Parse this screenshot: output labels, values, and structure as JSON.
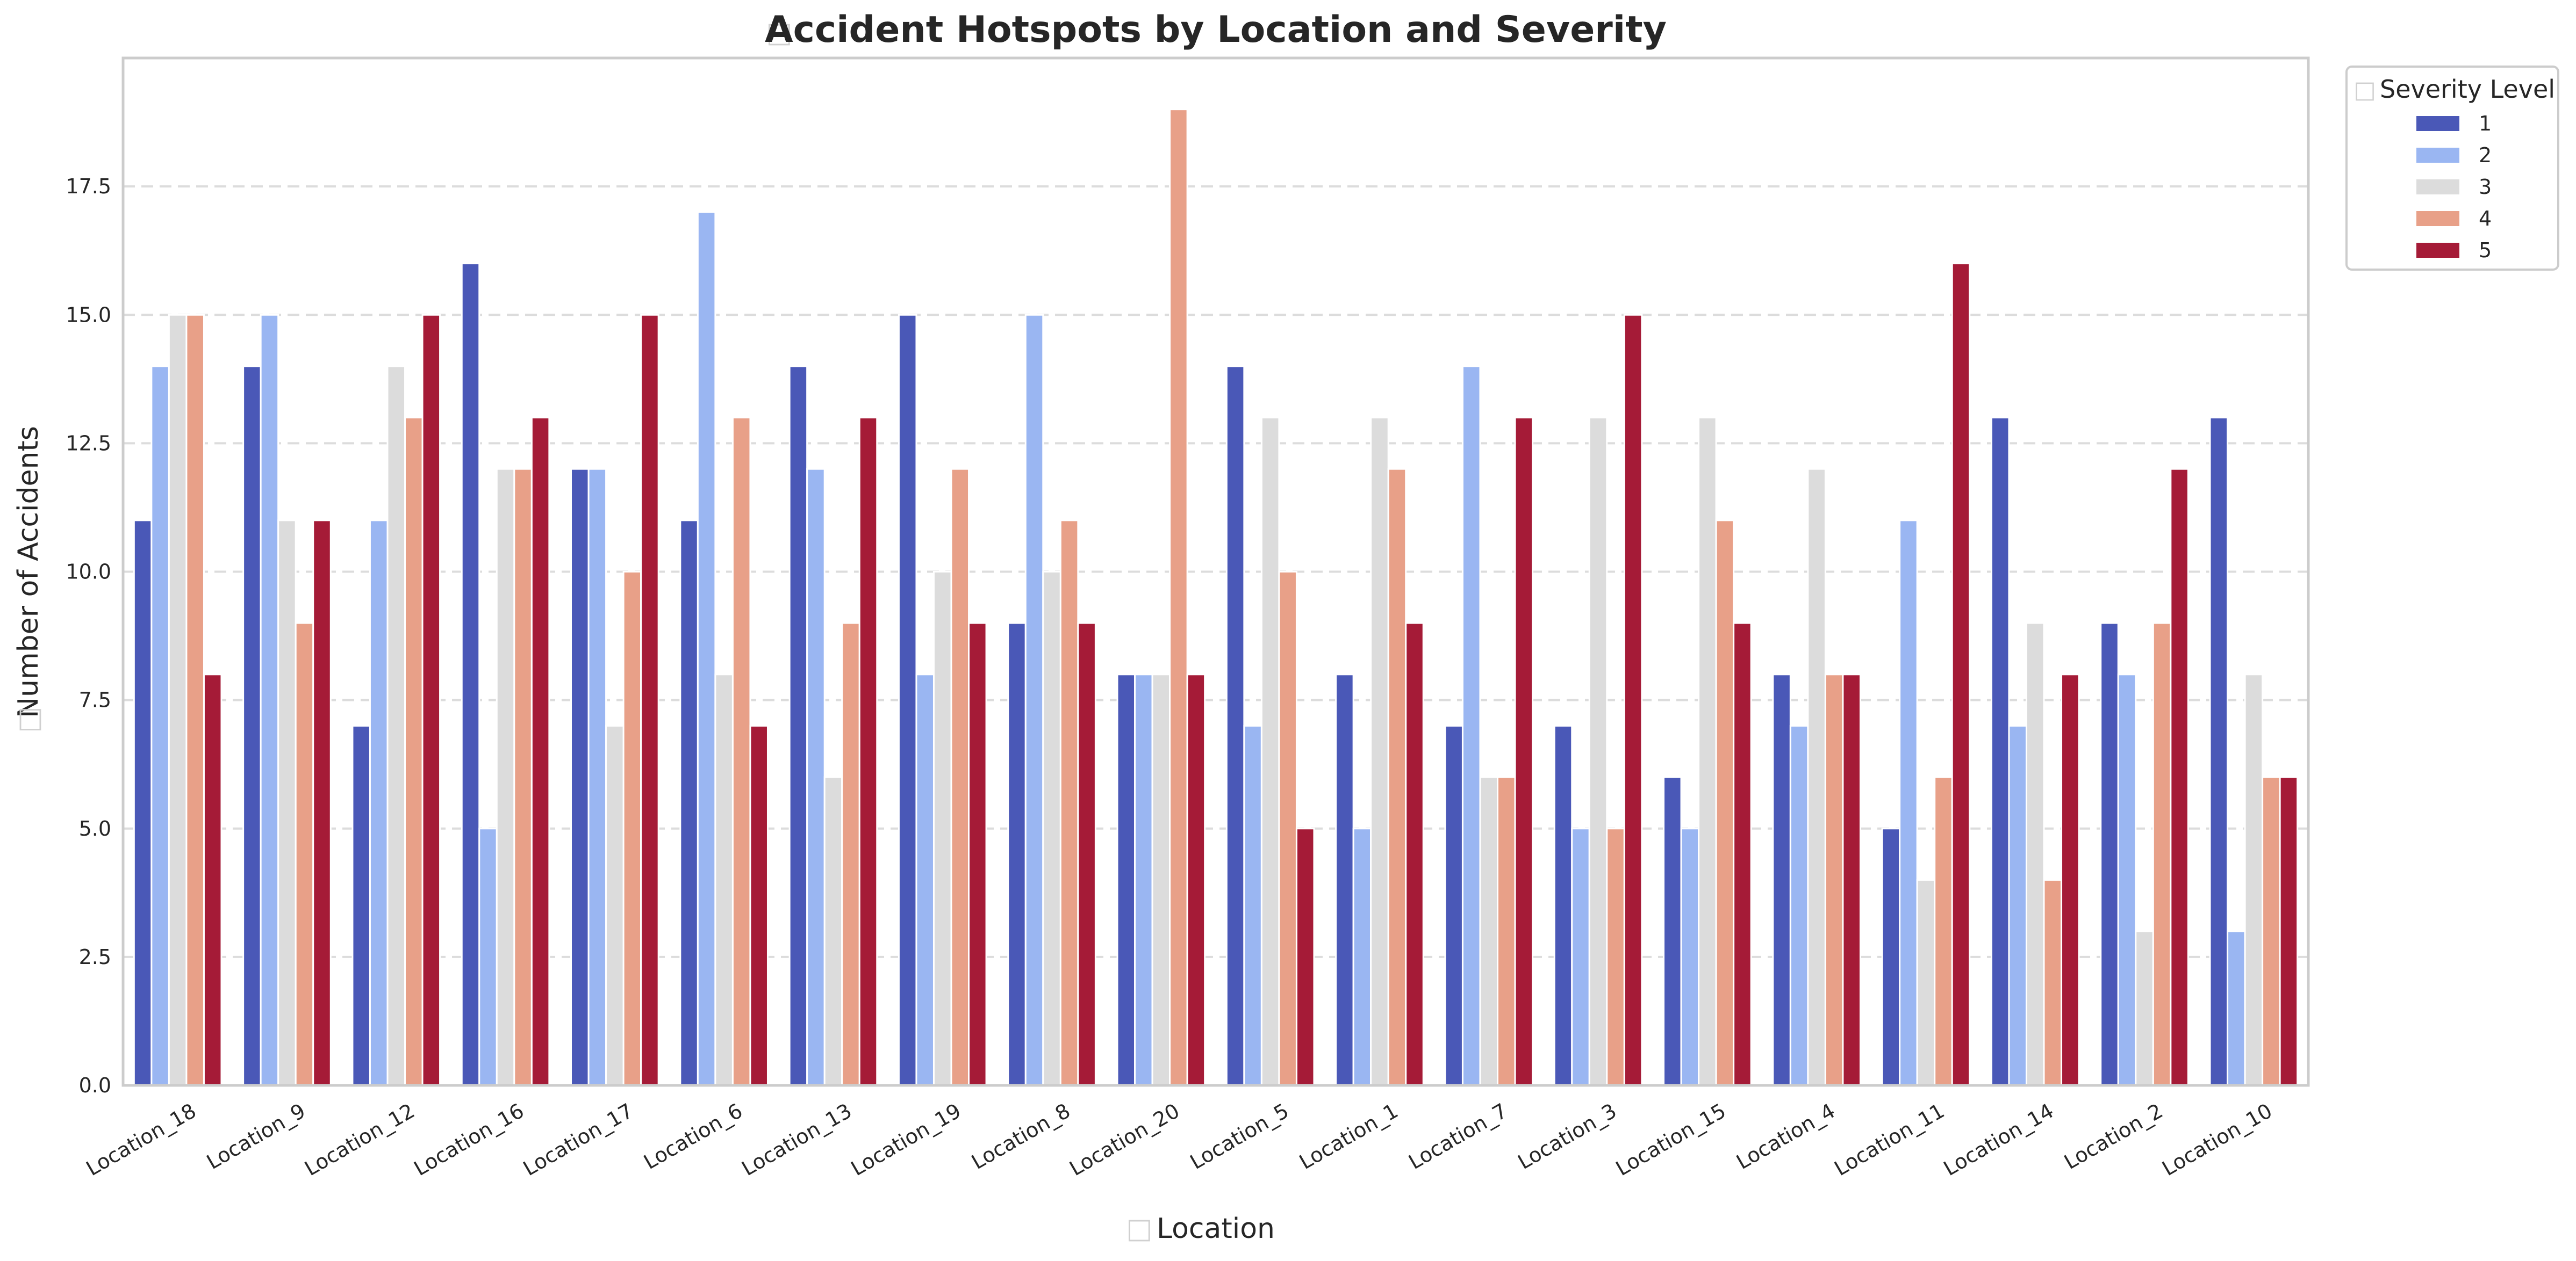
{
  "chart_data": {
    "type": "bar",
    "title": "Accident Hotspots by Location and Severity",
    "xlabel": "Location",
    "ylabel": "Number of Accidents",
    "ylim": [
      0,
      20
    ],
    "yticks": [
      "0.0",
      "2.5",
      "5.0",
      "7.5",
      "10.0",
      "12.5",
      "15.0",
      "17.5"
    ],
    "grid": "horizontal-dashed",
    "legend": {
      "title": "Severity Level",
      "placement": "top-right-outside"
    },
    "categories": [
      "Location_18",
      "Location_9",
      "Location_12",
      "Location_16",
      "Location_17",
      "Location_6",
      "Location_13",
      "Location_19",
      "Location_8",
      "Location_20",
      "Location_5",
      "Location_1",
      "Location_7",
      "Location_3",
      "Location_15",
      "Location_4",
      "Location_11",
      "Location_14",
      "Location_2",
      "Location_10"
    ],
    "series": [
      {
        "name": "1",
        "color": "#4a58b7",
        "values": [
          11,
          14,
          7,
          16,
          12,
          11,
          14,
          15,
          9,
          8,
          14,
          8,
          7,
          7,
          6,
          8,
          5,
          13,
          9,
          13
        ]
      },
      {
        "name": "2",
        "color": "#9ab6f2",
        "values": [
          14,
          15,
          11,
          5,
          12,
          17,
          12,
          8,
          15,
          8,
          7,
          5,
          14,
          5,
          5,
          7,
          11,
          7,
          8,
          3
        ]
      },
      {
        "name": "3",
        "color": "#dcdcdc",
        "values": [
          15,
          11,
          14,
          12,
          7,
          8,
          6,
          10,
          10,
          8,
          13,
          13,
          6,
          13,
          13,
          12,
          4,
          9,
          3,
          8
        ]
      },
      {
        "name": "4",
        "color": "#e8a088",
        "values": [
          15,
          9,
          13,
          12,
          10,
          13,
          9,
          12,
          11,
          19,
          10,
          12,
          6,
          5,
          11,
          8,
          6,
          4,
          9,
          6
        ]
      },
      {
        "name": "5",
        "color": "#a51b37",
        "values": [
          8,
          11,
          15,
          13,
          15,
          7,
          13,
          9,
          9,
          8,
          5,
          9,
          13,
          15,
          9,
          8,
          16,
          8,
          12,
          6
        ]
      }
    ]
  }
}
